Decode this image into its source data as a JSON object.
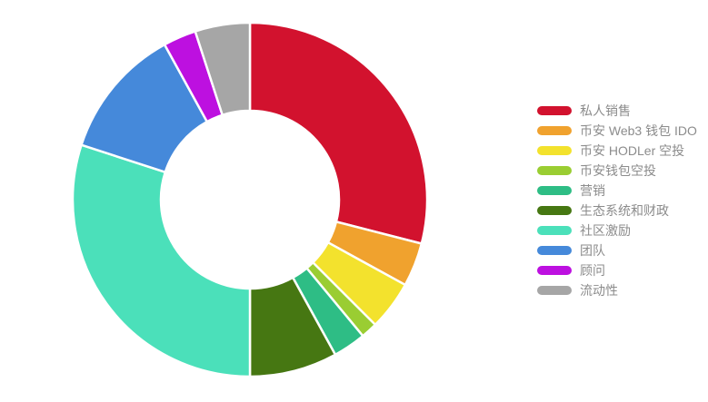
{
  "page": {
    "background_color": "#ffffff"
  },
  "chart_data": {
    "type": "pie",
    "subtype": "donut",
    "title": "",
    "unit": "%",
    "start_angle_deg": 0,
    "direction": "clockwise",
    "inner_radius_ratio": 0.5,
    "grid": false,
    "legend_position": "right",
    "legend_text_color": "#8c8c8c",
    "slice_border_color": "#ffffff",
    "categories": [
      "私人销售",
      "币安 Web3 钱包 IDO",
      "币安 HODLer 空投",
      "币安钱包空投",
      "营销",
      "生态系统和财政",
      "社区激励",
      "团队",
      "顾问",
      "流动性"
    ],
    "values": [
      29,
      4,
      4.5,
      1.5,
      3,
      8,
      30,
      12,
      3,
      5
    ],
    "items": [
      {
        "label": "私人销售",
        "value": 29,
        "color": "#d2122e"
      },
      {
        "label": "币安 Web3 钱包 IDO",
        "value": 4,
        "color": "#f0a22e"
      },
      {
        "label": "币安 HODLer 空投",
        "value": 4.5,
        "color": "#f3e22d"
      },
      {
        "label": "币安钱包空投",
        "value": 1.5,
        "color": "#9acd32"
      },
      {
        "label": "营销",
        "value": 3,
        "color": "#2ebd85"
      },
      {
        "label": "生态系统和财政",
        "value": 8,
        "color": "#467712"
      },
      {
        "label": "社区激励",
        "value": 30,
        "color": "#4be0ba"
      },
      {
        "label": "团队",
        "value": 12,
        "color": "#4589da"
      },
      {
        "label": "顾问",
        "value": 3,
        "color": "#bd10e0"
      },
      {
        "label": "流动性",
        "value": 5,
        "color": "#a6a6a6"
      }
    ]
  }
}
